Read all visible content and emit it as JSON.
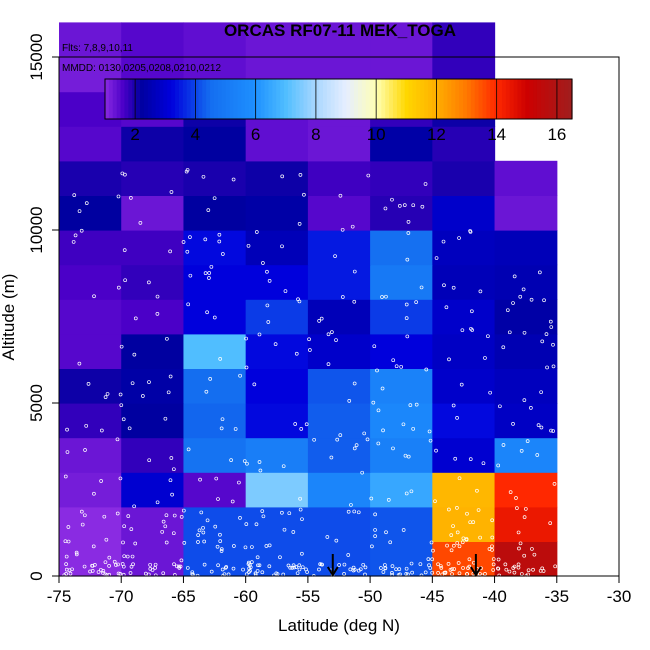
{
  "chart_data": {
    "type": "heatmap",
    "title": "ORCAS RF07-11 MEK_TOGA",
    "annotations": [
      "Flts: 7,8,9,10,11",
      "MMDD: 0130,0205,0208,0210,0212"
    ],
    "xlabel": "Latitude (deg N)",
    "ylabel": "Altitude (m)",
    "xlim": [
      -75,
      -30
    ],
    "ylim": [
      0,
      15000
    ],
    "x_ticks": [
      -75,
      -70,
      -65,
      -60,
      -55,
      -50,
      -45,
      -40,
      -35,
      -30
    ],
    "x_tick_labels": [
      "-75",
      "-70",
      "-65",
      "-60",
      "-55",
      "-50",
      "-45",
      "-40",
      "-35",
      "-30"
    ],
    "y_ticks": [
      0,
      5000,
      10000,
      15000
    ],
    "y_tick_labels": [
      "0",
      "5000",
      "10000",
      "15000"
    ],
    "colorbar": {
      "range": [
        1,
        16.5
      ],
      "ticks": [
        2,
        4,
        6,
        8,
        10,
        12,
        14,
        16
      ],
      "tick_labels": [
        "2",
        "4",
        "6",
        "8",
        "10",
        "12",
        "14",
        "16"
      ]
    },
    "lat_bins": [
      -75,
      -70,
      -65,
      -60,
      -55,
      -50,
      -45,
      -40,
      -35
    ],
    "alt_bin_size": 1000,
    "cells": [
      [
        1.0,
        1.3,
        4.1,
        4.1,
        4.1,
        4.2,
        13.6,
        15.6
      ],
      [
        1.0,
        1.3,
        4.1,
        4.1,
        4.1,
        4.2,
        11.9,
        14.4
      ],
      [
        1.2,
        3.0,
        1.5,
        7.5,
        5.5,
        6.5,
        11.8,
        14.0
      ],
      [
        1.3,
        1.8,
        4.7,
        5.2,
        4.3,
        5.3,
        3.0,
        5.5
      ],
      [
        1.8,
        2.2,
        4.4,
        3.3,
        4.3,
        5.6,
        3.3,
        2.8
      ],
      [
        2.1,
        2.3,
        4.5,
        3.2,
        4.2,
        5.4,
        2.9,
        2.7
      ],
      [
        1.5,
        2.2,
        7.0,
        3.3,
        2.9,
        3.2,
        2.8,
        2.5
      ],
      [
        1.5,
        1.6,
        3.2,
        3.9,
        2.6,
        3.9,
        2.9,
        2.3
      ],
      [
        1.6,
        1.8,
        3.2,
        3.2,
        3.5,
        5.0,
        2.6,
        2.5
      ],
      [
        1.7,
        1.7,
        3.3,
        2.6,
        3.5,
        4.6,
        2.7,
        2.6
      ],
      [
        2.2,
        1.3,
        2.2,
        2.3,
        1.5,
        1.9,
        2.9,
        1.3
      ],
      [
        2.0,
        1.9,
        2.0,
        2.1,
        1.7,
        1.8,
        2.0,
        1.4
      ],
      [
        1.5,
        2.1,
        2.2,
        1.4,
        1.3,
        2.3,
        1.9,
        null
      ],
      [
        1.6,
        1.5,
        2.1,
        1.4,
        1.3,
        1.8,
        2.1,
        null
      ],
      [
        1.2,
        1.5,
        1.4,
        1.3,
        1.3,
        1.3,
        1.8,
        null
      ],
      [
        1.3,
        1.5,
        1.4,
        1.3,
        1.3,
        1.3,
        1.8,
        null
      ]
    ],
    "arrows_latitude": [
      -53,
      -41.5
    ]
  }
}
